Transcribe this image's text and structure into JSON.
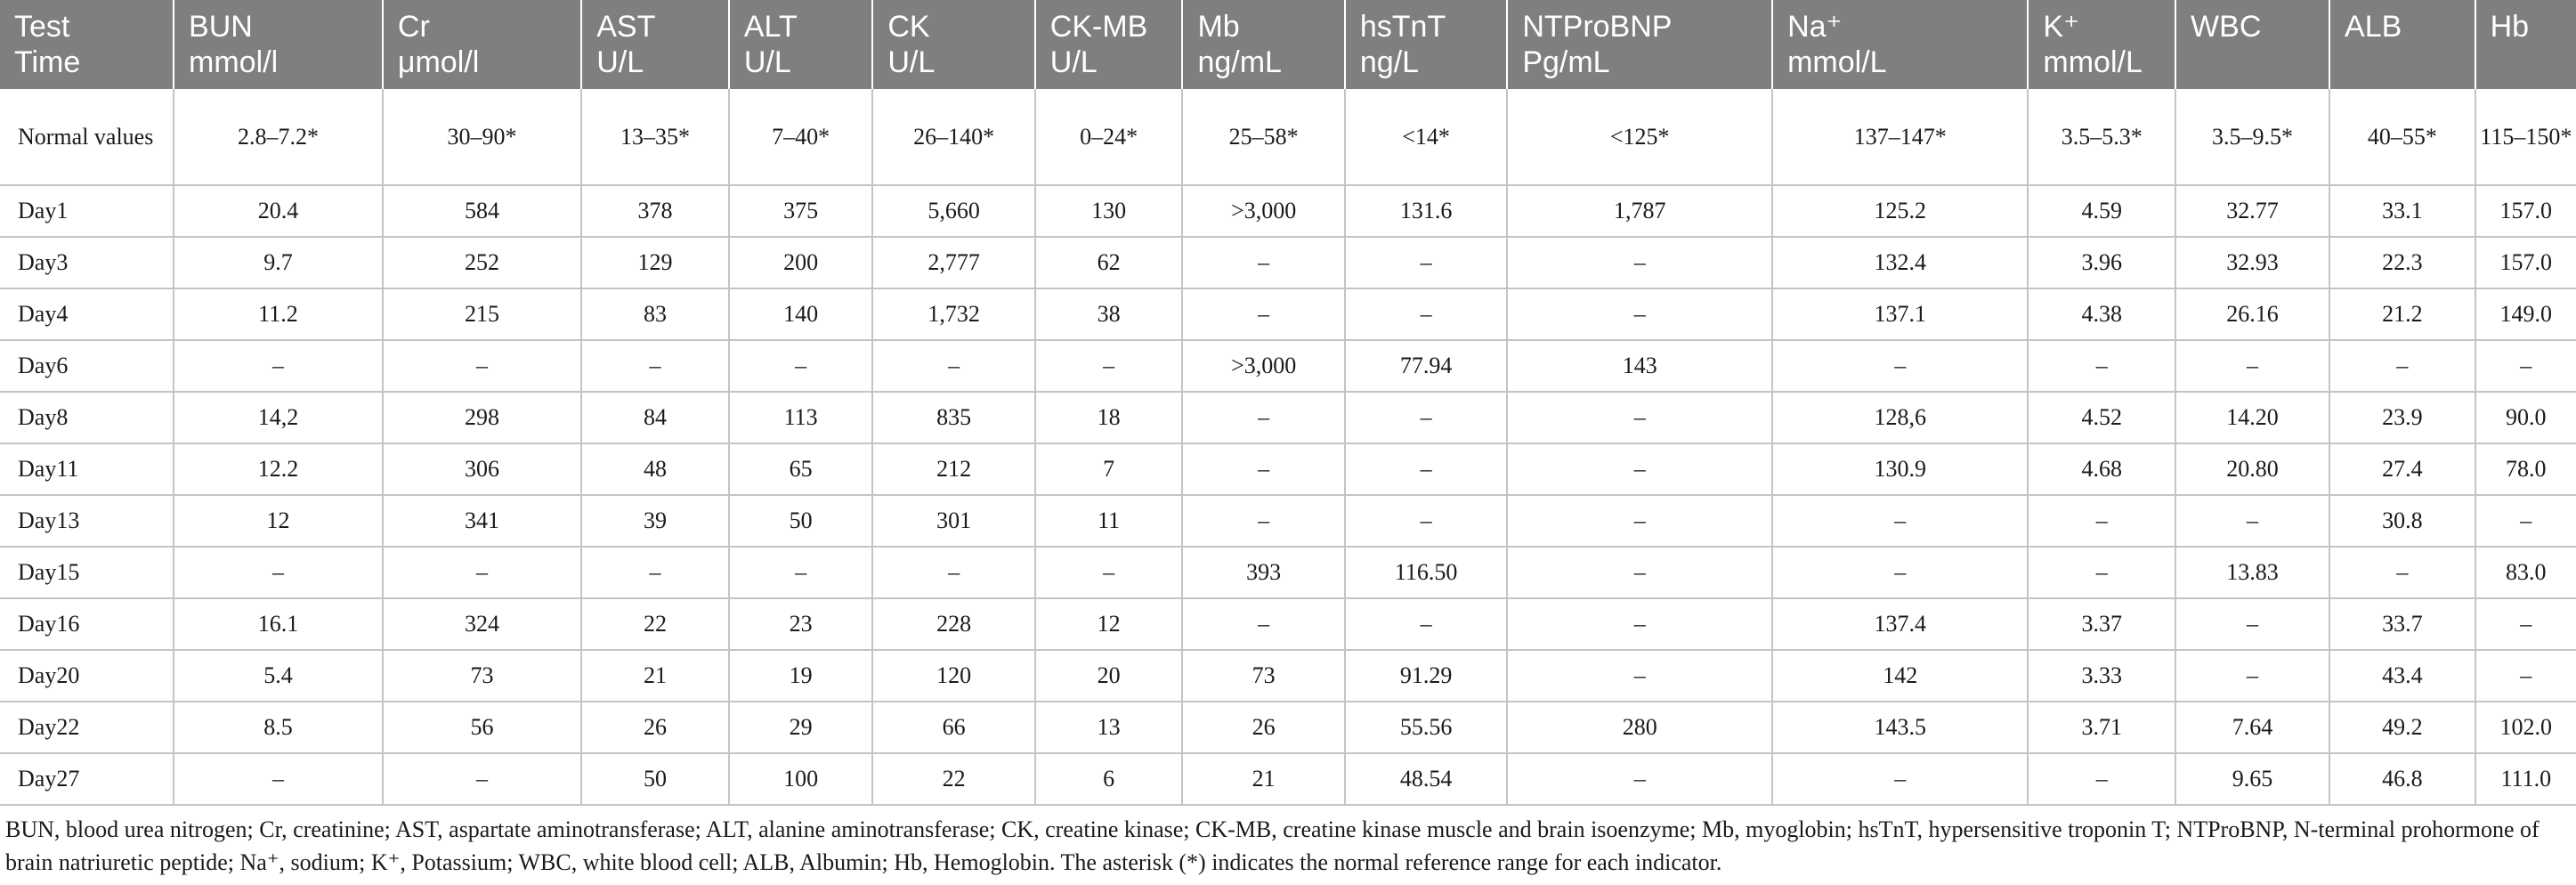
{
  "table": {
    "headers": [
      [
        "Test",
        "Time"
      ],
      [
        "BUN",
        "mmol/l"
      ],
      [
        "Cr",
        "μmol/l"
      ],
      [
        "AST",
        "U/L"
      ],
      [
        "ALT",
        "U/L"
      ],
      [
        "CK",
        "U/L"
      ],
      [
        "CK-MB",
        "U/L"
      ],
      [
        "Mb",
        "ng/mL"
      ],
      [
        "hsTnT",
        "ng/L"
      ],
      [
        "NTProBNP",
        "Pg/mL"
      ],
      [
        "Na⁺",
        "mmol/L"
      ],
      [
        "K⁺",
        "mmol/L"
      ],
      [
        "WBC",
        ""
      ],
      [
        "ALB",
        ""
      ],
      [
        "Hb",
        ""
      ]
    ],
    "rows": [
      [
        "Normal values",
        "2.8–7.2*",
        "30–90*",
        "13–35*",
        "7–40*",
        "26–140*",
        "0–24*",
        "25–58*",
        "<14*",
        "<125*",
        "137–147*",
        "3.5–5.3*",
        "3.5–9.5*",
        "40–55*",
        "115–150*"
      ],
      [
        "Day1",
        "20.4",
        "584",
        "378",
        "375",
        "5,660",
        "130",
        ">3,000",
        "131.6",
        "1,787",
        "125.2",
        "4.59",
        "32.77",
        "33.1",
        "157.0"
      ],
      [
        "Day3",
        "9.7",
        "252",
        "129",
        "200",
        "2,777",
        "62",
        "–",
        "–",
        "–",
        "132.4",
        "3.96",
        "32.93",
        "22.3",
        "157.0"
      ],
      [
        "Day4",
        "11.2",
        "215",
        "83",
        "140",
        "1,732",
        "38",
        "–",
        "–",
        "–",
        "137.1",
        "4.38",
        "26.16",
        "21.2",
        "149.0"
      ],
      [
        "Day6",
        "–",
        "–",
        "–",
        "–",
        "–",
        "–",
        ">3,000",
        "77.94",
        "143",
        "–",
        "–",
        "–",
        "–",
        "–"
      ],
      [
        "Day8",
        "14,2",
        "298",
        "84",
        "113",
        "835",
        "18",
        "–",
        "–",
        "–",
        "128,6",
        "4.52",
        "14.20",
        "23.9",
        "90.0"
      ],
      [
        "Day11",
        "12.2",
        "306",
        "48",
        "65",
        "212",
        "7",
        "–",
        "–",
        "–",
        "130.9",
        "4.68",
        "20.80",
        "27.4",
        "78.0"
      ],
      [
        "Day13",
        "12",
        "341",
        "39",
        "50",
        "301",
        "11",
        "–",
        "–",
        "–",
        "–",
        "–",
        "–",
        "30.8",
        "–"
      ],
      [
        "Day15",
        "–",
        "–",
        "–",
        "–",
        "–",
        "–",
        "393",
        "116.50",
        "–",
        "–",
        "–",
        "13.83",
        "–",
        "83.0"
      ],
      [
        "Day16",
        "16.1",
        "324",
        "22",
        "23",
        "228",
        "12",
        "–",
        "–",
        "–",
        "137.4",
        "3.37",
        "–",
        "33.7",
        "–"
      ],
      [
        "Day20",
        "5.4",
        "73",
        "21",
        "19",
        "120",
        "20",
        "73",
        "91.29",
        "–",
        "142",
        "3.33",
        "–",
        "43.4",
        "–"
      ],
      [
        "Day22",
        "8.5",
        "56",
        "26",
        "29",
        "66",
        "13",
        "26",
        "55.56",
        "280",
        "143.5",
        "3.71",
        "7.64",
        "49.2",
        "102.0"
      ],
      [
        "Day27",
        "–",
        "–",
        "50",
        "100",
        "22",
        "6",
        "21",
        "48.54",
        "–",
        "–",
        "–",
        "9.65",
        "46.8",
        "111.0"
      ]
    ]
  },
  "footnote": "BUN, blood urea nitrogen; Cr, creatinine; AST, aspartate aminotransferase; ALT, alanine aminotransferase; CK, creatine kinase; CK-MB, creatine kinase muscle and brain isoenzyme; Mb, myoglobin; hsTnT, hypersensitive troponin T; NTProBNP, N-terminal prohormone of brain natriuretic peptide; Na⁺, sodium; K⁺, Potassium; WBC, white blood cell; ALB, Albumin; Hb, Hemoglobin. The asterisk (*) indicates the normal reference range for each indicator.",
  "colors": {
    "header_background": "#7f7f7f",
    "header_text": "#ffffff",
    "grid_line": "#c4c4c4"
  }
}
